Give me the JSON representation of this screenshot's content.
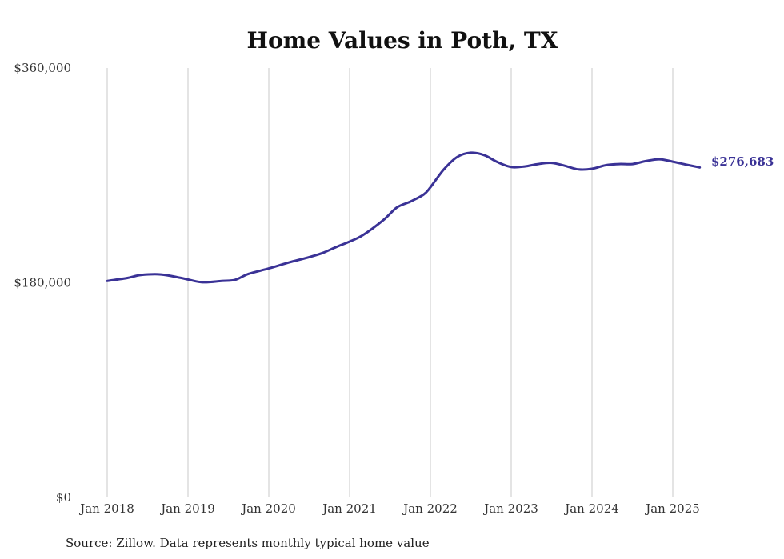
{
  "chart_data": {
    "type": "line",
    "title": "Home Values in Poth, TX",
    "source": "Source: Zillow. Data represents monthly typical home value",
    "xlabel": "",
    "ylabel": "",
    "ylim": [
      0,
      360000
    ],
    "y_ticks": [
      {
        "value": 0,
        "label": "$0"
      },
      {
        "value": 180000,
        "label": "$180,000"
      },
      {
        "value": 360000,
        "label": "$360,000"
      }
    ],
    "x_ticks": [
      {
        "value": "2018-01",
        "label": "Jan 2018"
      },
      {
        "value": "2019-01",
        "label": "Jan 2019"
      },
      {
        "value": "2020-01",
        "label": "Jan 2020"
      },
      {
        "value": "2021-01",
        "label": "Jan 2021"
      },
      {
        "value": "2022-01",
        "label": "Jan 2022"
      },
      {
        "value": "2023-01",
        "label": "Jan 2023"
      },
      {
        "value": "2024-01",
        "label": "Jan 2024"
      },
      {
        "value": "2025-01",
        "label": "Jan 2025"
      }
    ],
    "grid": "vertical",
    "line_color": "#3a3296",
    "end_label": "$276,683",
    "series": [
      {
        "x": [
          "2018-01",
          "2018-04",
          "2018-06",
          "2018-09",
          "2018-12",
          "2019-03",
          "2019-06",
          "2019-08",
          "2019-10",
          "2020-01",
          "2020-04",
          "2020-07",
          "2020-09",
          "2020-11",
          "2021-01",
          "2021-03",
          "2021-06",
          "2021-08",
          "2021-10",
          "2021-12",
          "2022-01",
          "2022-03",
          "2022-05",
          "2022-07",
          "2022-09",
          "2022-11",
          "2023-01",
          "2023-03",
          "2023-05",
          "2023-07",
          "2023-09",
          "2023-11",
          "2024-01",
          "2024-03",
          "2024-05",
          "2024-07",
          "2024-09",
          "2024-11",
          "2025-01",
          "2025-03",
          "2025-05"
        ],
        "values": [
          181500,
          184000,
          186500,
          187000,
          184000,
          180500,
          181500,
          182500,
          187500,
          192000,
          197000,
          201500,
          205000,
          210000,
          214500,
          220000,
          232500,
          243000,
          248000,
          254000,
          260000,
          275000,
          285500,
          289000,
          287000,
          281000,
          277000,
          277500,
          279500,
          280500,
          278000,
          275000,
          275500,
          278500,
          279500,
          279500,
          282000,
          283500,
          281500,
          279000,
          276683
        ]
      }
    ]
  }
}
